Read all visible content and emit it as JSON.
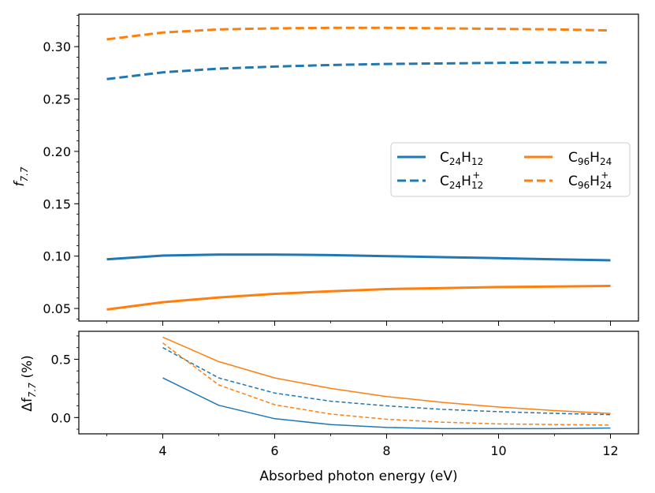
{
  "chart_data": [
    {
      "type": "line",
      "panel": "top",
      "ylabel": "f_{7.7}",
      "ylabel_main": "f",
      "ylabel_sub": "7.7",
      "xlim": [
        2.5,
        12.5
      ],
      "ylim": [
        0.038,
        0.331
      ],
      "yticks": [
        0.05,
        0.1,
        0.15,
        0.2,
        0.25,
        0.3
      ],
      "ytick_labels": [
        "0.05",
        "0.10",
        "0.15",
        "0.20",
        "0.25",
        "0.30"
      ],
      "legend_location": "center-right",
      "series": [
        {
          "name": "C24H12",
          "color": "#1f77b4",
          "dash": false,
          "width": 3,
          "x": [
            3,
            4,
            5,
            6,
            7,
            8,
            9,
            10,
            11,
            12
          ],
          "values": [
            0.097,
            0.1005,
            0.1015,
            0.1015,
            0.101,
            0.1,
            0.099,
            0.098,
            0.097,
            0.096
          ]
        },
        {
          "name": "C24H12+",
          "color": "#1f77b4",
          "dash": true,
          "width": 3,
          "x": [
            3,
            4,
            5,
            6,
            7,
            8,
            9,
            10,
            11,
            12
          ],
          "values": [
            0.269,
            0.2755,
            0.279,
            0.281,
            0.2825,
            0.2835,
            0.284,
            0.2845,
            0.285,
            0.285
          ]
        },
        {
          "name": "C96H24",
          "color": "#ff7f0e",
          "dash": false,
          "width": 3,
          "x": [
            3,
            4,
            5,
            6,
            7,
            8,
            9,
            10,
            11,
            12
          ],
          "values": [
            0.049,
            0.056,
            0.0605,
            0.064,
            0.0665,
            0.0685,
            0.0695,
            0.0705,
            0.071,
            0.0715
          ]
        },
        {
          "name": "C96H24+",
          "color": "#ff7f0e",
          "dash": true,
          "width": 3,
          "x": [
            3,
            4,
            5,
            6,
            7,
            8,
            9,
            10,
            11,
            12
          ],
          "values": [
            0.307,
            0.3135,
            0.3165,
            0.3175,
            0.318,
            0.318,
            0.3175,
            0.317,
            0.3165,
            0.3155
          ]
        }
      ]
    },
    {
      "type": "line",
      "panel": "bottom",
      "xlabel": "Absorbed photon energy (eV)",
      "ylabel": "Δf_{7.7} (%)",
      "ylabel_pre": "Δf",
      "ylabel_sub": "7.7",
      "ylabel_post": " (%)",
      "xlim": [
        2.5,
        12.5
      ],
      "ylim": [
        -0.14,
        0.74
      ],
      "xticks": [
        4,
        6,
        8,
        10,
        12
      ],
      "xtick_labels": [
        "4",
        "6",
        "8",
        "10",
        "12"
      ],
      "yticks": [
        0.0,
        0.5
      ],
      "ytick_labels": [
        "0.0",
        "0.5"
      ],
      "series": [
        {
          "name": "C24H12",
          "color": "#1f77b4",
          "dash": false,
          "width": 1.5,
          "x": [
            4,
            5,
            6,
            7,
            8,
            9,
            10,
            11,
            12
          ],
          "values": [
            0.34,
            0.105,
            -0.01,
            -0.06,
            -0.085,
            -0.095,
            -0.095,
            -0.095,
            -0.09
          ]
        },
        {
          "name": "C24H12+",
          "color": "#1f77b4",
          "dash": true,
          "width": 1.5,
          "x": [
            4,
            5,
            6,
            7,
            8,
            9,
            10,
            11,
            12
          ],
          "values": [
            0.6,
            0.34,
            0.21,
            0.14,
            0.1,
            0.07,
            0.05,
            0.035,
            0.025
          ]
        },
        {
          "name": "C96H24",
          "color": "#ff7f0e",
          "dash": false,
          "width": 1.5,
          "x": [
            4,
            5,
            6,
            7,
            8,
            9,
            10,
            11,
            12
          ],
          "values": [
            0.69,
            0.48,
            0.34,
            0.25,
            0.18,
            0.13,
            0.09,
            0.06,
            0.035
          ]
        },
        {
          "name": "C96H24+",
          "color": "#ff7f0e",
          "dash": true,
          "width": 1.5,
          "x": [
            4,
            5,
            6,
            7,
            8,
            9,
            10,
            11,
            12
          ],
          "values": [
            0.64,
            0.28,
            0.11,
            0.03,
            -0.015,
            -0.04,
            -0.055,
            -0.06,
            -0.065
          ]
        }
      ]
    }
  ],
  "legend": [
    {
      "base1": "C",
      "sub1": "24",
      "base2": "H",
      "sub2": "12",
      "sup": ""
    },
    {
      "base1": "C",
      "sub1": "24",
      "base2": "H",
      "sub2": "12",
      "sup": "+"
    },
    {
      "base1": "C",
      "sub1": "96",
      "base2": "H",
      "sub2": "24",
      "sup": ""
    },
    {
      "base1": "C",
      "sub1": "96",
      "base2": "H",
      "sub2": "24",
      "sup": "+"
    }
  ]
}
